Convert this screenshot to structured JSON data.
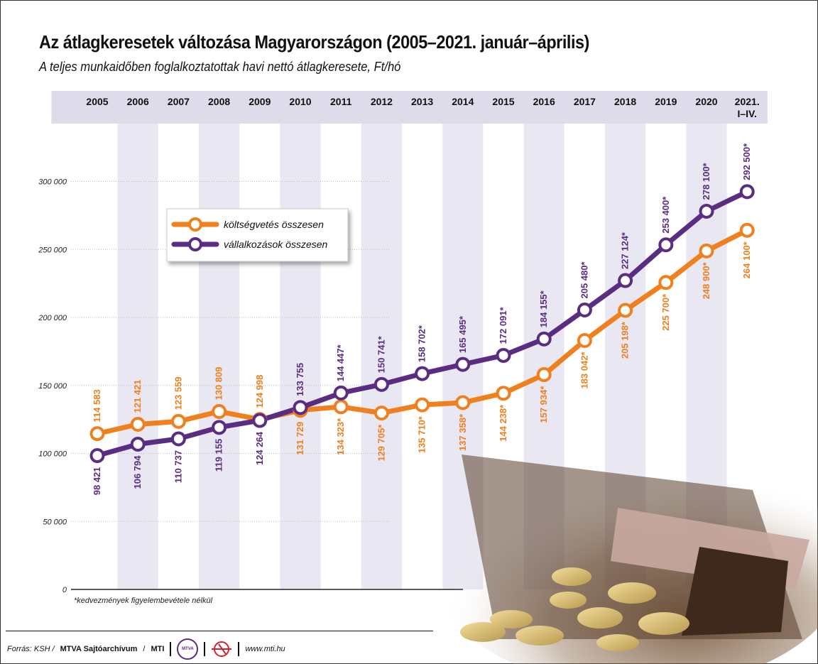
{
  "title": "Az átlagkeresetek változása Magyarországon (2005–2021. január–április)",
  "subtitle": "A teljes munkaidőben foglalkoztatottak havi nettó átlagkeresete, Ft/hó",
  "footnote": "*kedvezmények figyelembevétele nélkül",
  "source": {
    "prefix": "Forrás: KSH /",
    "archive": "MTVA Sajtóarchívum",
    "slash": "/",
    "agency": "MTI",
    "mtva_logo_text": "MTVA",
    "website": "www.mti.hu"
  },
  "colors": {
    "orange": "#f07f1e",
    "purple": "#5a2d82",
    "band": "#e9e7f1",
    "header": "#dedbea"
  },
  "chart_data": {
    "type": "line",
    "title": "Az átlagkeresetek változása Magyarországon (2005–2021. január–április)",
    "ylabel": "Ft/hó",
    "ylim": [
      0,
      300000
    ],
    "yticks": [
      0,
      50000,
      100000,
      150000,
      200000,
      250000,
      300000
    ],
    "ytick_labels": [
      "0",
      "50 000",
      "100 000",
      "150 000",
      "200 000",
      "250 000",
      "300 000"
    ],
    "categories": [
      "2005",
      "2006",
      "2007",
      "2008",
      "2009",
      "2010",
      "2011",
      "2012",
      "2013",
      "2014",
      "2015",
      "2016",
      "2017",
      "2018",
      "2019",
      "2020",
      "2021. I–IV."
    ],
    "category_lines": [
      [
        "2005"
      ],
      [
        "2006"
      ],
      [
        "2007"
      ],
      [
        "2008"
      ],
      [
        "2009"
      ],
      [
        "2010"
      ],
      [
        "2011"
      ],
      [
        "2012"
      ],
      [
        "2013"
      ],
      [
        "2014"
      ],
      [
        "2015"
      ],
      [
        "2016"
      ],
      [
        "2017"
      ],
      [
        "2018"
      ],
      [
        "2019"
      ],
      [
        "2020"
      ],
      [
        "2021.",
        "I–IV."
      ]
    ],
    "legend_position": "top-left",
    "series": [
      {
        "name": "költségvetés összesen",
        "color": "#f07f1e",
        "values": [
          114583,
          121421,
          123559,
          130809,
          124998,
          131729,
          134323,
          129705,
          135710,
          137358,
          144238,
          157934,
          183042,
          205198,
          225700,
          248900,
          264100
        ],
        "labels": [
          "114 583",
          "121 421",
          "123 559",
          "130 809",
          "124 998",
          "131 729",
          "134 323*",
          "129 705*",
          "135 710*",
          "137 358*",
          "144 238*",
          "157 934*",
          "183 042*",
          "205 198*",
          "225 700*",
          "248 900*",
          "264 100*"
        ],
        "label_pos": [
          "above",
          "above",
          "above",
          "above",
          "above",
          "below",
          "below",
          "below",
          "below",
          "below",
          "below",
          "below",
          "below",
          "below",
          "below",
          "below",
          "below"
        ]
      },
      {
        "name": "vállalkozások összesen",
        "color": "#5a2d82",
        "values": [
          98421,
          106794,
          110737,
          119155,
          124264,
          133755,
          144447,
          150741,
          158702,
          165495,
          172091,
          184155,
          205480,
          227124,
          253400,
          278100,
          292500
        ],
        "labels": [
          "98 421",
          "106 794",
          "110 737",
          "119 155",
          "124 264",
          "133 755",
          "144 447*",
          "150 741*",
          "158 702*",
          "165 495*",
          "172 091*",
          "184 155*",
          "205 480*",
          "227 124*",
          "253 400*",
          "278 100*",
          "292 500*"
        ],
        "label_pos": [
          "below",
          "below",
          "below",
          "below",
          "below",
          "above",
          "above",
          "above",
          "above",
          "above",
          "above",
          "above",
          "above",
          "above",
          "above",
          "above",
          "above"
        ]
      }
    ]
  }
}
